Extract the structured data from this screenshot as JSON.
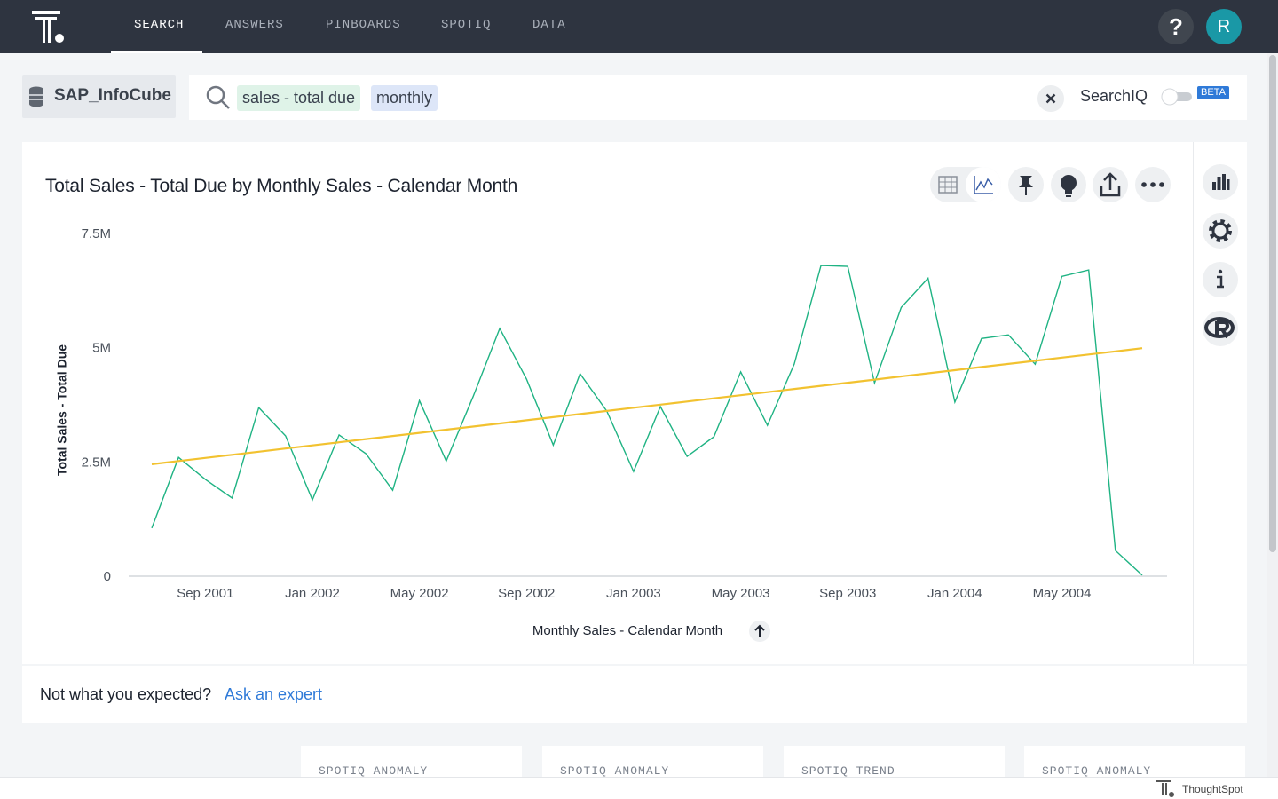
{
  "nav": [
    "SEARCH",
    "ANSWERS",
    "PINBOARDS",
    "SPOTIQ",
    "DATA"
  ],
  "help": "?",
  "user_initial": "R",
  "source": "SAP_InfoCube",
  "search_tokens": [
    "sales - total due",
    "monthly"
  ],
  "searchiq": "SearchIQ",
  "beta": "BETA",
  "chart_data": {
    "type": "line",
    "title": "Total Sales - Total Due by Monthly Sales - Calendar Month",
    "x_label": "Monthly Sales - Calendar Month",
    "y_label": "Total Sales - Total Due",
    "categories": [
      null,
      null,
      "Sep 2001",
      null,
      null,
      null,
      "Jan 2002",
      null,
      null,
      null,
      "May 2002",
      null,
      null,
      null,
      "Sep 2002",
      null,
      null,
      null,
      "Jan 2003",
      null,
      null,
      null,
      "May 2003",
      null,
      null,
      null,
      "Sep 2003",
      null,
      null,
      null,
      "Jan 2004",
      null,
      null,
      null,
      "May 2004",
      null,
      null,
      null
    ],
    "series": [
      {
        "color": "#1fb383",
        "values": [
          1070000,
          2620000,
          2140000,
          1730000,
          3710000,
          3090000,
          1690000,
          3110000,
          2700000,
          1900000,
          3860000,
          2540000,
          3940000,
          5440000,
          4330000,
          2890000,
          4450000,
          3630000,
          2310000,
          3730000,
          2640000,
          3070000,
          4490000,
          3320000,
          4660000,
          6820000,
          6800000,
          4250000,
          5900000,
          6540000,
          3830000,
          5220000,
          5300000,
          4660000,
          6580000,
          6720000,
          580000,
          40000
        ]
      },
      {
        "color": "#f2c230",
        "values": [
          2470000,
          2538600,
          2607200,
          2675800,
          2744400,
          2813000,
          2881600,
          2950200,
          3018800,
          3087400,
          3156000,
          3224600,
          3293200,
          3361800,
          3430400,
          3499000,
          3567600,
          3636200,
          3704800,
          3773400,
          3842000,
          3910600,
          3979200,
          4047800,
          4116400,
          4185000,
          4253600,
          4322200,
          4390800,
          4459400,
          4528000,
          4596600,
          4665200,
          4733800,
          4802400,
          4871000,
          4939600,
          5008200
        ]
      }
    ],
    "ylim": [
      0,
      7500000
    ],
    "yticks": [
      0,
      {
        "value": 2500000,
        "label": "2.5M"
      },
      {
        "value": 5000000,
        "label": "5M"
      },
      {
        "value": 7500000,
        "label": "7.5M"
      }
    ],
    "grid": false
  },
  "feedback": {
    "question": "Not what you expected?",
    "link": "Ask an expert"
  },
  "insight_cards": [
    "SPOTIQ ANOMALY",
    "SPOTIQ ANOMALY",
    "SPOTIQ TREND",
    "SPOTIQ ANOMALY"
  ],
  "footer_brand": "ThoughtSpot"
}
